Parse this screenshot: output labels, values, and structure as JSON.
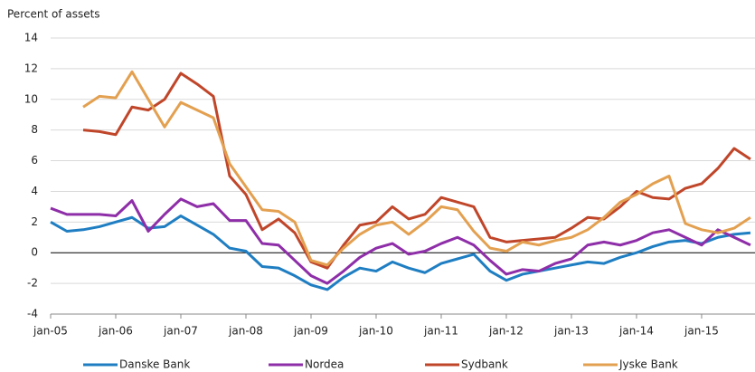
{
  "chart_data": {
    "type": "line",
    "y_label": "Percent of assets",
    "x": [
      2005,
      2005.25,
      2005.5,
      2005.75,
      2006,
      2006.25,
      2006.5,
      2006.75,
      2007,
      2007.25,
      2007.5,
      2007.75,
      2008,
      2008.25,
      2008.5,
      2008.75,
      2009,
      2009.25,
      2009.5,
      2009.75,
      2010,
      2010.25,
      2010.5,
      2010.75,
      2011,
      2011.25,
      2011.5,
      2011.75,
      2012,
      2012.25,
      2012.5,
      2012.75,
      2013,
      2013.25,
      2013.5,
      2013.75,
      2014,
      2014.25,
      2014.5,
      2014.75,
      2015,
      2015.25,
      2015.5,
      2015.75
    ],
    "series": [
      {
        "name": "Danske Bank",
        "color": "#1f7ec2",
        "values": [
          2.0,
          1.4,
          1.5,
          1.7,
          2.0,
          2.3,
          1.6,
          1.7,
          2.4,
          1.8,
          1.2,
          0.3,
          0.1,
          -0.9,
          -1.0,
          -1.5,
          -2.1,
          -2.4,
          -1.6,
          -1.0,
          -1.2,
          -0.6,
          -1.0,
          -1.3,
          -0.7,
          -0.4,
          -0.1,
          -1.2,
          -1.8,
          -1.4,
          -1.2,
          -1.0,
          -0.8,
          -0.6,
          -0.7,
          -0.3,
          0.0,
          0.4,
          0.7,
          0.8,
          0.6,
          1.0,
          1.2,
          1.3
        ]
      },
      {
        "name": "Nordea",
        "color": "#8e2ea8",
        "values": [
          2.9,
          2.5,
          2.5,
          2.5,
          2.4,
          3.4,
          1.4,
          2.5,
          3.5,
          3.0,
          3.2,
          2.1,
          2.1,
          0.6,
          0.5,
          -0.5,
          -1.5,
          -2.0,
          -1.2,
          -0.3,
          0.3,
          0.6,
          -0.1,
          0.1,
          0.6,
          1.0,
          0.5,
          -0.5,
          -1.4,
          -1.1,
          -1.2,
          -0.7,
          -0.4,
          0.5,
          0.7,
          0.5,
          0.8,
          1.3,
          1.5,
          1.0,
          0.5,
          1.5,
          1.0,
          0.5
        ]
      },
      {
        "name": "Sydbank",
        "color": "#c0462a",
        "values": [
          null,
          null,
          8.0,
          7.9,
          7.7,
          9.5,
          9.3,
          10.0,
          11.7,
          11.0,
          10.2,
          5.0,
          3.8,
          1.5,
          2.2,
          1.3,
          -0.6,
          -1.0,
          0.5,
          1.8,
          2.0,
          3.0,
          2.2,
          2.5,
          3.6,
          3.3,
          3.0,
          1.0,
          0.7,
          0.8,
          0.9,
          1.0,
          1.6,
          2.3,
          2.2,
          3.0,
          4.0,
          3.6,
          3.5,
          4.2,
          4.5,
          5.5,
          6.8,
          6.1
        ]
      },
      {
        "name": "Jyske Bank",
        "color": "#e3a050",
        "values": [
          null,
          null,
          9.5,
          10.2,
          10.1,
          11.8,
          10.0,
          8.2,
          9.8,
          9.3,
          8.8,
          5.8,
          4.3,
          2.8,
          2.7,
          2.0,
          -0.5,
          -0.8,
          0.3,
          1.2,
          1.8,
          2.0,
          1.2,
          2.0,
          3.0,
          2.8,
          1.4,
          0.3,
          0.1,
          0.7,
          0.5,
          0.8,
          1.0,
          1.5,
          2.3,
          3.3,
          3.8,
          4.5,
          5.0,
          1.9,
          1.5,
          1.3,
          1.6,
          2.3
        ]
      }
    ],
    "xlim": [
      2005,
      2015.82
    ],
    "xticks": [
      {
        "value": 2005,
        "label": "jan-05"
      },
      {
        "value": 2006,
        "label": "jan-06"
      },
      {
        "value": 2007,
        "label": "jan-07"
      },
      {
        "value": 2008,
        "label": "jan-08"
      },
      {
        "value": 2009,
        "label": "jan-09"
      },
      {
        "value": 2010,
        "label": "jan-10"
      },
      {
        "value": 2011,
        "label": "jan-11"
      },
      {
        "value": 2012,
        "label": "jan-12"
      },
      {
        "value": 2013,
        "label": "jan-13"
      },
      {
        "value": 2014,
        "label": "jan-14"
      },
      {
        "value": 2015,
        "label": "jan-15"
      }
    ],
    "ylim": [
      -4,
      14
    ],
    "yticks": [
      -4,
      -2,
      0,
      2,
      4,
      6,
      8,
      10,
      12,
      14
    ],
    "grid": true,
    "legend": "bottom"
  }
}
